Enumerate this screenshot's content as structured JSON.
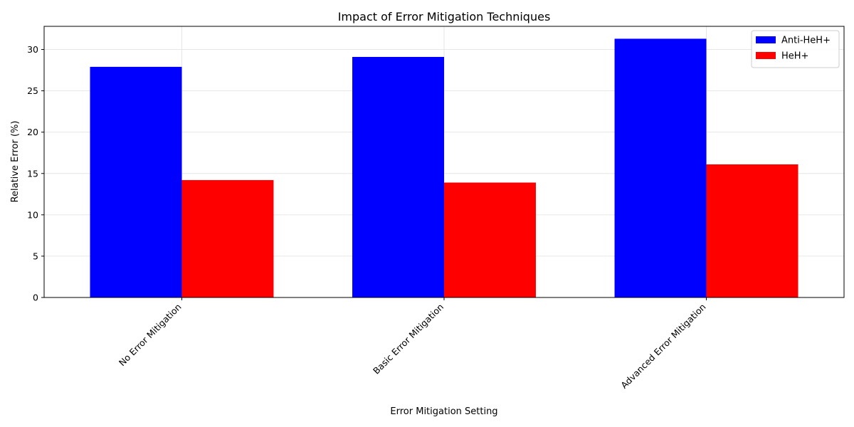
{
  "chart_data": {
    "type": "bar",
    "title": "Impact of Error Mitigation Techniques",
    "xlabel": "Error Mitigation Setting",
    "ylabel": "Relative Error (%)",
    "categories": [
      "No Error Mitigation",
      "Basic Error Mitigation",
      "Advanced Error Mitigation"
    ],
    "series": [
      {
        "name": "Anti-HeH+",
        "color": "#0000ff",
        "values": [
          27.9,
          29.1,
          31.3
        ]
      },
      {
        "name": "HeH+",
        "color": "#ff0000",
        "values": [
          14.2,
          13.9,
          16.1
        ]
      }
    ],
    "ylim": [
      0,
      32.8
    ],
    "yticks": [
      0,
      5,
      10,
      15,
      20,
      25,
      30
    ],
    "grid": true,
    "legend": "top-right"
  }
}
